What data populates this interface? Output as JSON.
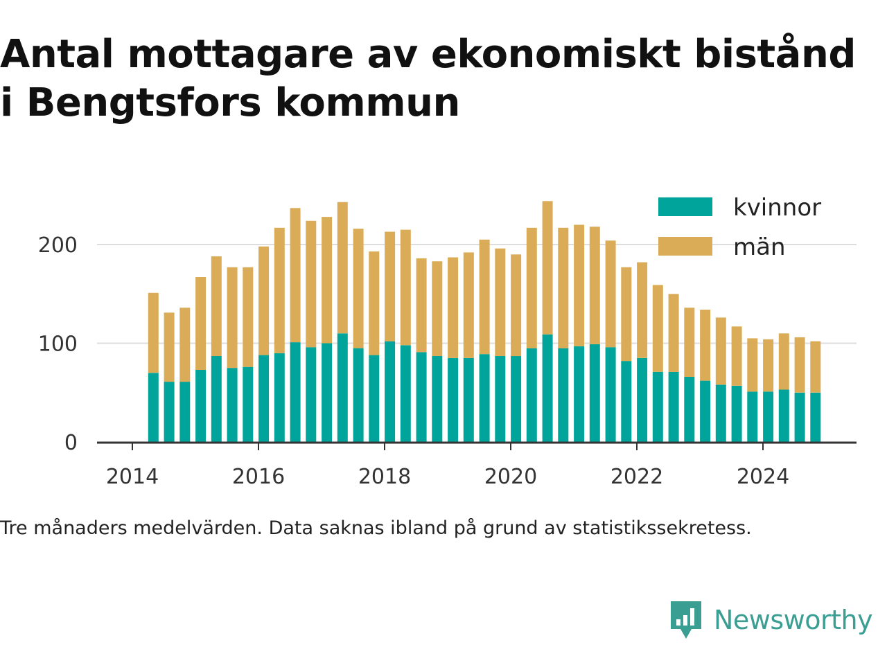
{
  "title_lines": [
    "Antal mottagare av ekonomiskt bistånd",
    "i Bengtsfors kommun"
  ],
  "caption": "Tre månaders medelvärden. Data saknas ibland på grund av statistikssekretess.",
  "brand": {
    "name": "Newsworthy",
    "icon": "newsworthy-logo-icon",
    "color": "#3a9e93"
  },
  "colors": {
    "kvinnor": "#00a49a",
    "man": "#dbac58",
    "grid": "#dddddd",
    "axis": "#333333"
  },
  "chart_data": {
    "type": "bar",
    "stacked": true,
    "title": "Antal mottagare av ekonomiskt bistånd i Bengtsfors kommun",
    "xlabel": "",
    "ylabel": "",
    "x_ticks": [
      "2014",
      "2016",
      "2018",
      "2020",
      "2022",
      "2024"
    ],
    "y_ticks": [
      "0",
      "100",
      "200"
    ],
    "ylim": [
      0,
      260
    ],
    "grid": true,
    "legend_position": "top-right",
    "periods": [
      "2014-05",
      "2014-08",
      "2014-11",
      "2015-02",
      "2015-05",
      "2015-08",
      "2015-11",
      "2016-02",
      "2016-05",
      "2016-08",
      "2016-11",
      "2017-02",
      "2017-05",
      "2017-08",
      "2017-11",
      "2018-02",
      "2018-05",
      "2018-08",
      "2018-11",
      "2019-02",
      "2019-05",
      "2019-08",
      "2019-11",
      "2020-02",
      "2020-05",
      "2020-08",
      "2020-11",
      "2021-02",
      "2021-05",
      "2021-08",
      "2021-11",
      "2022-02",
      "2022-05",
      "2022-08",
      "2022-11",
      "2023-02",
      "2023-05",
      "2023-08",
      "2023-11",
      "2024-02",
      "2024-05",
      "2024-08",
      "2024-11"
    ],
    "series": [
      {
        "name": "kvinnor",
        "color": "#00a49a",
        "values": [
          70,
          61,
          61,
          73,
          87,
          75,
          76,
          88,
          90,
          101,
          96,
          100,
          110,
          95,
          88,
          102,
          98,
          91,
          87,
          85,
          85,
          89,
          87,
          87,
          95,
          109,
          95,
          97,
          99,
          96,
          82,
          85,
          71,
          71,
          66,
          62,
          58,
          57,
          51,
          51,
          53,
          50,
          50
        ]
      },
      {
        "name": "män",
        "color": "#dbac58",
        "values": [
          81,
          70,
          75,
          94,
          101,
          102,
          101,
          110,
          127,
          136,
          128,
          128,
          133,
          121,
          105,
          111,
          117,
          95,
          96,
          102,
          107,
          116,
          109,
          103,
          122,
          135,
          122,
          123,
          119,
          108,
          95,
          97,
          88,
          79,
          70,
          72,
          68,
          60,
          54,
          53,
          57,
          56,
          52
        ]
      }
    ]
  }
}
